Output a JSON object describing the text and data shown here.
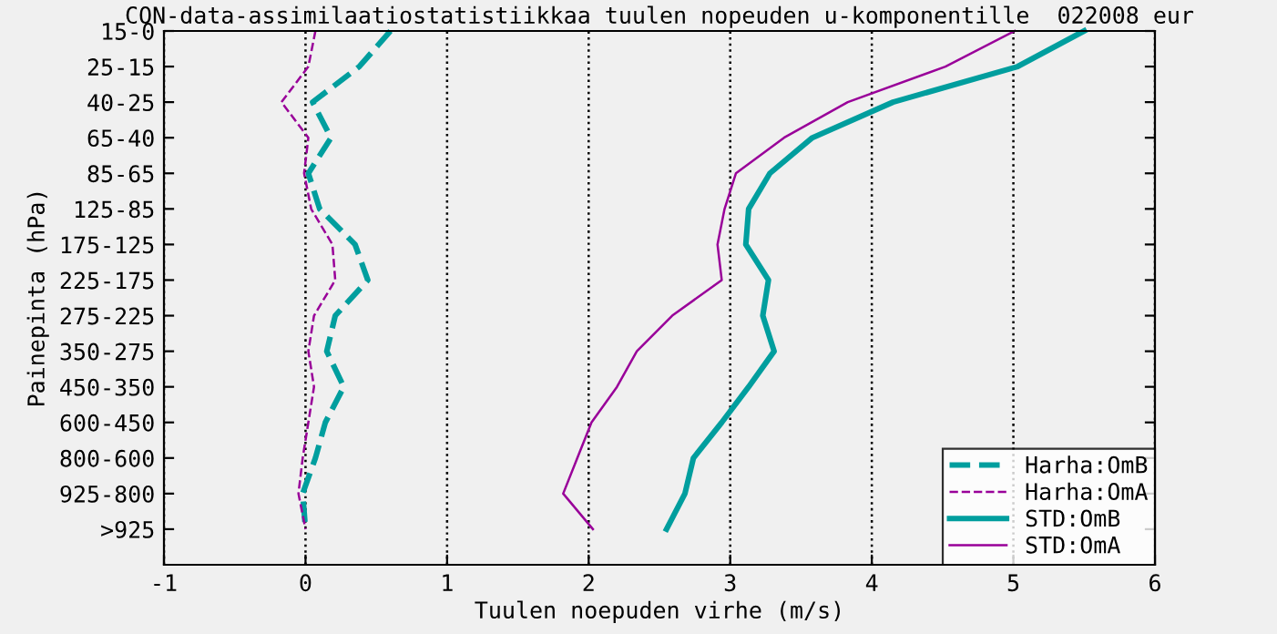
{
  "chart_data": {
    "type": "line",
    "title": "CON-data-assimilaatiostatistiikkaa tuulen nopeuden u-komponentille  022008 eur",
    "xlabel": "Tuulen noepuden virhe (m/s)",
    "ylabel": "Painepinta (hPa)",
    "categories": [
      "15-0",
      "25-15",
      "40-25",
      "65-40",
      "85-65",
      "125-85",
      "175-125",
      "225-175",
      "275-225",
      "350-275",
      "450-350",
      "600-450",
      "800-600",
      "925-800",
      ">925"
    ],
    "orientation": "horizontal",
    "xlim": [
      -1,
      6
    ],
    "xticks": [
      -1,
      0,
      1,
      2,
      3,
      4,
      5,
      6
    ],
    "grid": "x",
    "legend": "bottom right",
    "series": [
      {
        "name": "Harha:OmB",
        "color": "#009e9e",
        "line_style": "dashed",
        "values": [
          0.6,
          0.38,
          0.05,
          0.18,
          0.02,
          0.1,
          0.35,
          0.44,
          0.21,
          0.15,
          0.27,
          0.14,
          0.07,
          -0.02,
          0.0
        ]
      },
      {
        "name": "Harha:OmA",
        "color": "#990099",
        "line_style": "dashed",
        "values": [
          0.07,
          0.02,
          -0.17,
          0.02,
          -0.01,
          0.04,
          0.19,
          0.21,
          0.06,
          0.02,
          0.06,
          0.02,
          -0.02,
          -0.05,
          0.0
        ]
      },
      {
        "name": "STD:OmB",
        "color": "#009e9e",
        "line_style": "solid",
        "values": [
          5.5,
          5.03,
          4.15,
          3.58,
          3.28,
          3.13,
          3.11,
          3.27,
          3.23,
          3.31,
          3.13,
          2.94,
          2.74,
          2.68,
          2.55
        ]
      },
      {
        "name": "STD:OmA",
        "color": "#990099",
        "line_style": "solid",
        "values": [
          5.01,
          4.52,
          3.83,
          3.38,
          3.04,
          2.96,
          2.91,
          2.94,
          2.59,
          2.34,
          2.2,
          2.02,
          1.92,
          1.82,
          2.03
        ]
      }
    ]
  }
}
